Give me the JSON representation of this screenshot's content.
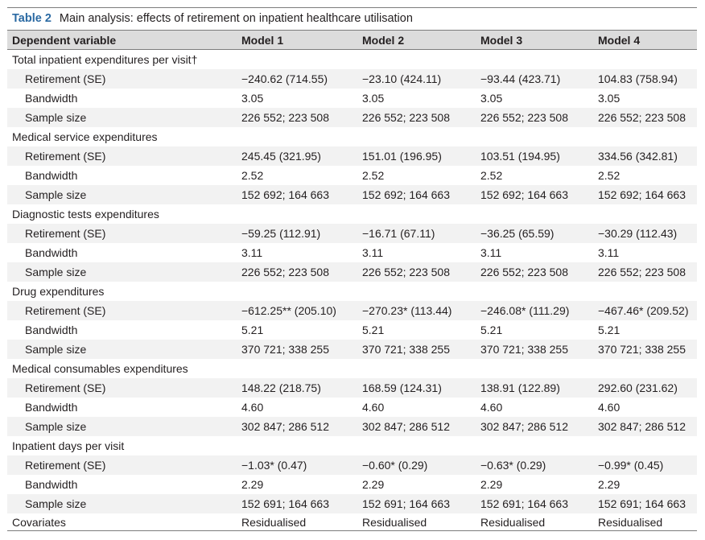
{
  "caption": {
    "label": "Table 2",
    "title": "Main analysis: effects of retirement on inpatient healthcare utilisation"
  },
  "header": [
    "Dependent variable",
    "Model 1",
    "Model 2",
    "Model 3",
    "Model 4"
  ],
  "groups": [
    {
      "title": "Total inpatient expenditures per visit†",
      "rows": [
        {
          "label": "Retirement (SE)",
          "values": [
            "−240.62 (714.55)",
            "−23.10 (424.11)",
            "−93.44 (423.71)",
            "104.83 (758.94)"
          ]
        },
        {
          "label": "Bandwidth",
          "values": [
            "3.05",
            "3.05",
            "3.05",
            "3.05"
          ]
        },
        {
          "label": "Sample size",
          "values": [
            "226 552; 223 508",
            "226 552; 223 508",
            "226 552; 223 508",
            "226 552; 223 508"
          ]
        }
      ]
    },
    {
      "title": "Medical service expenditures",
      "rows": [
        {
          "label": "Retirement (SE)",
          "values": [
            "245.45 (321.95)",
            "151.01 (196.95)",
            "103.51 (194.95)",
            "334.56 (342.81)"
          ]
        },
        {
          "label": "Bandwidth",
          "values": [
            "2.52",
            "2.52",
            "2.52",
            "2.52"
          ]
        },
        {
          "label": "Sample size",
          "values": [
            "152 692; 164 663",
            "152 692; 164 663",
            "152 692; 164 663",
            "152 692; 164 663"
          ]
        }
      ]
    },
    {
      "title": "Diagnostic tests expenditures",
      "rows": [
        {
          "label": "Retirement (SE)",
          "values": [
            "−59.25 (112.91)",
            "−16.71 (67.11)",
            "−36.25 (65.59)",
            "−30.29 (112.43)"
          ]
        },
        {
          "label": "Bandwidth",
          "values": [
            "3.11",
            "3.11",
            "3.11",
            "3.11"
          ]
        },
        {
          "label": "Sample size",
          "values": [
            "226 552; 223 508",
            "226 552; 223 508",
            "226 552; 223 508",
            "226 552; 223 508"
          ]
        }
      ]
    },
    {
      "title": "Drug expenditures",
      "rows": [
        {
          "label": "Retirement (SE)",
          "values": [
            "−612.25** (205.10)",
            "−270.23* (113.44)",
            "−246.08* (111.29)",
            "−467.46* (209.52)"
          ]
        },
        {
          "label": "Bandwidth",
          "values": [
            "5.21",
            "5.21",
            "5.21",
            "5.21"
          ]
        },
        {
          "label": "Sample size",
          "values": [
            "370 721; 338 255",
            "370 721; 338 255",
            "370 721; 338 255",
            "370 721; 338 255"
          ]
        }
      ]
    },
    {
      "title": "Medical consumables expenditures",
      "rows": [
        {
          "label": "Retirement (SE)",
          "values": [
            "148.22 (218.75)",
            "168.59 (124.31)",
            "138.91 (122.89)",
            "292.60 (231.62)"
          ]
        },
        {
          "label": "Bandwidth",
          "values": [
            "4.60",
            "4.60",
            "4.60",
            "4.60"
          ]
        },
        {
          "label": "Sample size",
          "values": [
            "302 847; 286 512",
            "302 847; 286 512",
            "302 847; 286 512",
            "302 847; 286 512"
          ]
        }
      ]
    },
    {
      "title": "Inpatient days per visit",
      "rows": [
        {
          "label": "Retirement (SE)",
          "values": [
            "−1.03* (0.47)",
            "−0.60* (0.29)",
            "−0.63* (0.29)",
            "−0.99* (0.45)"
          ]
        },
        {
          "label": "Bandwidth",
          "values": [
            "2.29",
            "2.29",
            "2.29",
            "2.29"
          ]
        },
        {
          "label": "Sample size",
          "values": [
            "152 691; 164 663",
            "152 691; 164 663",
            "152 691; 164 663",
            "152 691; 164 663"
          ]
        }
      ]
    }
  ],
  "covariates": {
    "label": "Covariates",
    "values": [
      "Residualised",
      "Residualised",
      "Residualised",
      "Residualised"
    ]
  },
  "colors": {
    "caption_label": "#2b6aa3",
    "header_bg": "#dcdcdc",
    "band_bg": "#f2f2f2",
    "text": "#231f20"
  }
}
